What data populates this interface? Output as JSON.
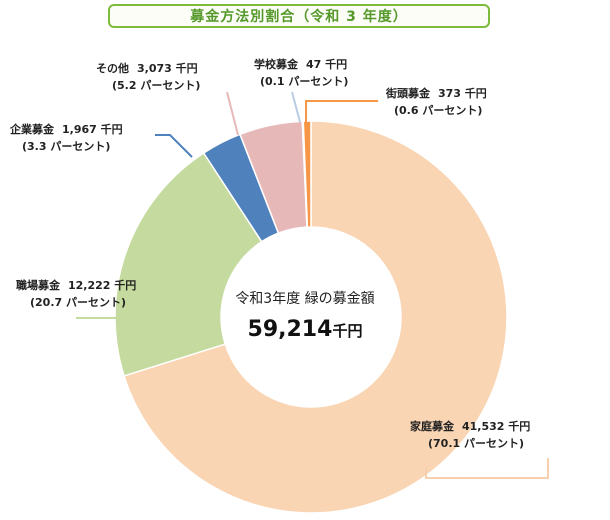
{
  "chart_data": {
    "type": "pie",
    "title": "募金方法別割合（令和 3 年度）",
    "center": {
      "label": "令和3年度 緑の募金額",
      "value": "59,214",
      "unit": "千円"
    },
    "slices": [
      {
        "name": "家庭募金",
        "amount_text": "41,532 千円",
        "percent_text": "(70.1 パーセント)",
        "value": 41532,
        "percent": 70.1,
        "color": "#fad5b4",
        "leader_color": "#f5cfae"
      },
      {
        "name": "職場募金",
        "amount_text": "12,222 千円",
        "percent_text": "(20.7 パーセント)",
        "value": 12222,
        "percent": 20.7,
        "color": "#c5da9e",
        "leader_color": "#c5da9e"
      },
      {
        "name": "企業募金",
        "amount_text": "1,967 千円",
        "percent_text": "(3.3 パーセント)",
        "value": 1967,
        "percent": 3.3,
        "color": "#4f81bd",
        "leader_color": "#4f81bd"
      },
      {
        "name": "その他",
        "amount_text": "3,073 千円",
        "percent_text": "(5.2 パーセント)",
        "value": 3073,
        "percent": 5.2,
        "color": "#e6b9b8",
        "leader_color": "#e6b9b8"
      },
      {
        "name": "学校募金",
        "amount_text": "47 千円",
        "percent_text": "(0.1 パーセント)",
        "value": 47,
        "percent": 0.1,
        "color": "#b8cce4",
        "leader_color": "#b8cce4"
      },
      {
        "name": "街頭募金",
        "amount_text": "373 千円",
        "percent_text": "(0.6 パーセント)",
        "value": 373,
        "percent": 0.6,
        "color": "#f79646",
        "leader_color": "#f79646"
      }
    ]
  }
}
